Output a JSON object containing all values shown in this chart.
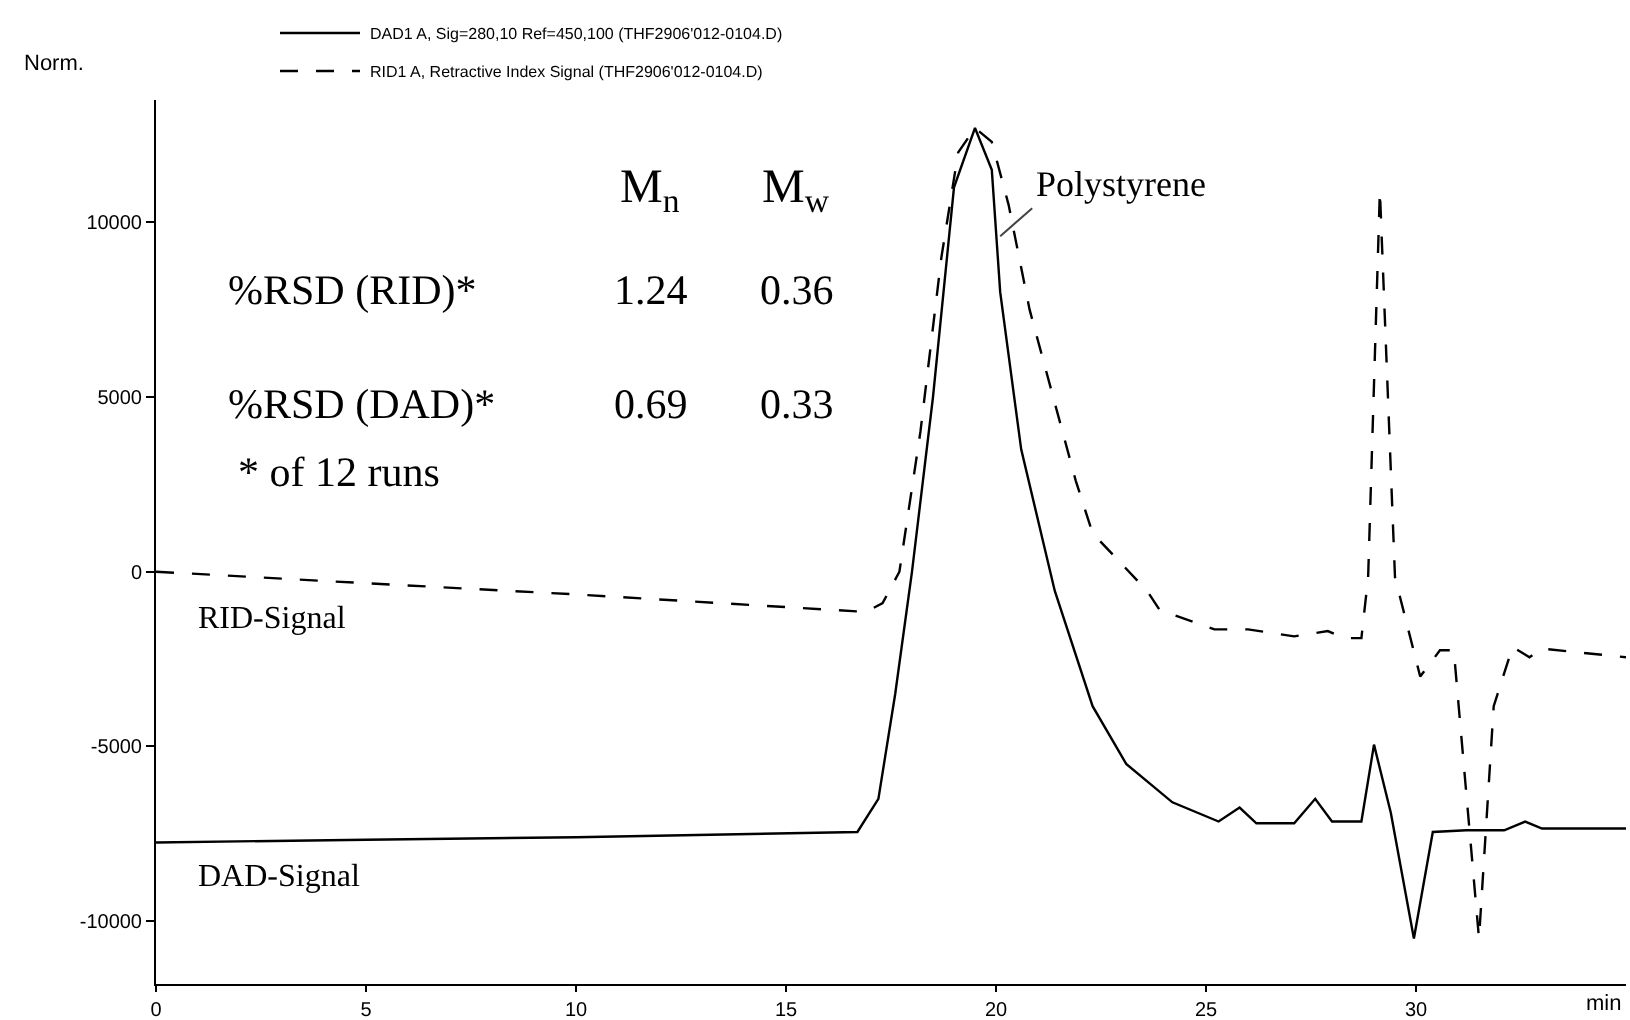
{
  "chart_data": {
    "type": "line",
    "ylabel": "Norm.",
    "xlabel": "min",
    "xlim": [
      0,
      35
    ],
    "xticks": [
      0,
      5,
      10,
      15,
      20,
      25,
      30
    ],
    "ylim": [
      -11800,
      13500
    ],
    "yticks": [
      -10000,
      -5000,
      0,
      5000,
      10000
    ],
    "grid": false,
    "legend": "top left",
    "marker": "none",
    "series": [
      {
        "name": "DAD1 A, Sig=280,10 Ref=450,100 (THF2906'012-0104.D)",
        "color": "#000000",
        "line_style": "solid",
        "x": [
          0,
          5,
          10,
          16.7,
          17.2,
          17.6,
          18.0,
          18.5,
          19.0,
          19.5,
          19.9,
          20.1,
          20.6,
          21.4,
          22.3,
          23.1,
          24.2,
          25.3,
          25.8,
          26.2,
          27.1,
          27.6,
          28.0,
          28.7,
          29.0,
          29.4,
          29.95,
          30.4,
          31.2,
          32.1,
          32.6,
          33.0,
          35
        ],
        "values": [
          -7750,
          -7670,
          -7600,
          -7450,
          -6500,
          -3500,
          0,
          5000,
          11000,
          12700,
          11500,
          8000,
          3500,
          -550,
          -3850,
          -5500,
          -6600,
          -7150,
          -6750,
          -7200,
          -7200,
          -6500,
          -7150,
          -7150,
          -4950,
          -6900,
          -10500,
          -7450,
          -7400,
          -7400,
          -7150,
          -7350,
          -7350
        ]
      },
      {
        "name": "RID1 A, Retractive Index Signal (THF2906'012-0104.D)",
        "color": "#000000",
        "line_style": "dashed",
        "x": [
          0,
          5,
          10,
          16.9,
          17.3,
          17.7,
          18.2,
          18.7,
          19.1,
          19.5,
          19.9,
          20.3,
          20.8,
          21.9,
          22.3,
          23.6,
          23.9,
          25.2,
          26.0,
          27.1,
          27.9,
          28.3,
          28.7,
          28.86,
          29.14,
          29.5,
          30.1,
          30.57,
          30.9,
          31.5,
          31.85,
          32.3,
          32.7,
          33.0,
          35
        ],
        "values": [
          0,
          -330,
          -650,
          -1150,
          -900,
          0,
          4000,
          9000,
          12000,
          12700,
          12300,
          10500,
          7500,
          2600,
          1100,
          -550,
          -1100,
          -1650,
          -1650,
          -1850,
          -1700,
          -1900,
          -1900,
          -160,
          10900,
          -160,
          -3000,
          -2250,
          -2250,
          -10500,
          -3850,
          -2150,
          -2450,
          -2200,
          -2450
        ]
      }
    ],
    "annotations": [
      "M$_{n}$",
      "M$_{w}$",
      "%RSD (RID)*",
      "1.24",
      "0.36",
      "%RSD (DAD)*",
      "0.69",
      "0.33",
      "* of 12 runs",
      "RID-Signal",
      "DAD-Signal",
      {
        "text": "Polystyrene",
        "x": 20.1,
        "y": 9600
      }
    ]
  }
}
